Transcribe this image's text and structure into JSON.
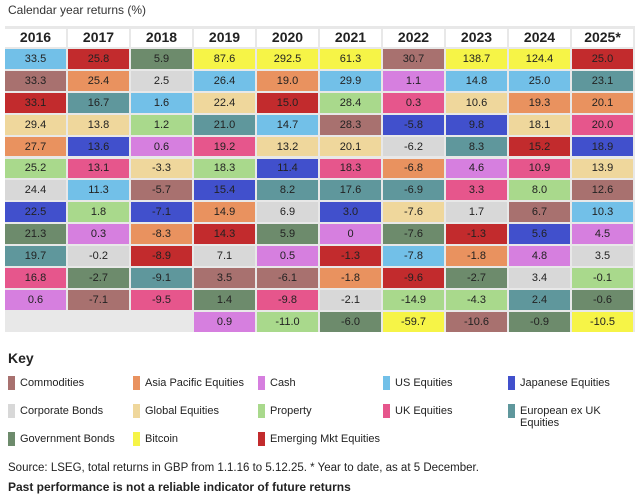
{
  "header": {
    "title": "Calendar year returns (%)"
  },
  "table": {
    "columns": [
      {
        "year": "2016",
        "cells": [
          [
            "33.5",
            "US Equities"
          ],
          [
            "33.3",
            "Commodities"
          ],
          [
            "33.1",
            "Emerging Mkt Equities"
          ],
          [
            "29.4",
            "Global Equities"
          ],
          [
            "27.7",
            "Asia Pacific Equities"
          ],
          [
            "25.2",
            "Property"
          ],
          [
            "24.4",
            "Corporate Bonds"
          ],
          [
            "22.5",
            "Japanese Equities"
          ],
          [
            "21.3",
            "Government Bonds"
          ],
          [
            "19.7",
            "European ex UK Equities"
          ],
          [
            "16.8",
            "UK Equities"
          ],
          [
            "0.6",
            "Cash"
          ]
        ]
      },
      {
        "year": "2017",
        "cells": [
          [
            "25.8",
            "Emerging Mkt Equities"
          ],
          [
            "25.4",
            "Asia Pacific Equities"
          ],
          [
            "16.7",
            "European ex UK Equities"
          ],
          [
            "13.8",
            "Global Equities"
          ],
          [
            "13.6",
            "Japanese Equities"
          ],
          [
            "13.1",
            "UK Equities"
          ],
          [
            "11.3",
            "US Equities"
          ],
          [
            "1.8",
            "Property"
          ],
          [
            "0.3",
            "Cash"
          ],
          [
            "-0.2",
            "Corporate Bonds"
          ],
          [
            "-2.7",
            "Government Bonds"
          ],
          [
            "-7.1",
            "Commodities"
          ]
        ]
      },
      {
        "year": "2018",
        "cells": [
          [
            "5.9",
            "Government Bonds"
          ],
          [
            "2.5",
            "Corporate Bonds"
          ],
          [
            "1.6",
            "US Equities"
          ],
          [
            "1.2",
            "Property"
          ],
          [
            "0.6",
            "Cash"
          ],
          [
            "-3.3",
            "Global Equities"
          ],
          [
            "-5.7",
            "Commodities"
          ],
          [
            "-7.1",
            "Japanese Equities"
          ],
          [
            "-8.3",
            "Asia Pacific Equities"
          ],
          [
            "-8.9",
            "Emerging Mkt Equities"
          ],
          [
            "-9.1",
            "European ex UK Equities"
          ],
          [
            "-9.5",
            "UK Equities"
          ]
        ]
      },
      {
        "year": "2019",
        "cells": [
          [
            "87.6",
            "Bitcoin"
          ],
          [
            "26.4",
            "US Equities"
          ],
          [
            "22.4",
            "Global Equities"
          ],
          [
            "21.0",
            "European ex UK Equities"
          ],
          [
            "19.2",
            "UK Equities"
          ],
          [
            "18.3",
            "Property"
          ],
          [
            "15.4",
            "Japanese Equities"
          ],
          [
            "14.9",
            "Asia Pacific Equities"
          ],
          [
            "14.3",
            "Emerging Mkt Equities"
          ],
          [
            "7.1",
            "Corporate Bonds"
          ],
          [
            "3.5",
            "Commodities"
          ],
          [
            "1.4",
            "Government Bonds"
          ],
          [
            "0.9",
            "Cash"
          ]
        ]
      },
      {
        "year": "2020",
        "cells": [
          [
            "292.5",
            "Bitcoin"
          ],
          [
            "19.0",
            "Asia Pacific Equities"
          ],
          [
            "15.0",
            "Emerging Mkt Equities"
          ],
          [
            "14.7",
            "US Equities"
          ],
          [
            "13.2",
            "Global Equities"
          ],
          [
            "11.4",
            "Japanese Equities"
          ],
          [
            "8.2",
            "European ex UK Equities"
          ],
          [
            "6.9",
            "Corporate Bonds"
          ],
          [
            "5.9",
            "Government Bonds"
          ],
          [
            "0.5",
            "Cash"
          ],
          [
            "-6.1",
            "Commodities"
          ],
          [
            "-9.8",
            "UK Equities"
          ],
          [
            "-11.0",
            "Property"
          ]
        ]
      },
      {
        "year": "2021",
        "cells": [
          [
            "61.3",
            "Bitcoin"
          ],
          [
            "29.9",
            "US Equities"
          ],
          [
            "28.4",
            "Property"
          ],
          [
            "28.3",
            "Commodities"
          ],
          [
            "20.1",
            "Global Equities"
          ],
          [
            "18.3",
            "UK Equities"
          ],
          [
            "17.6",
            "European ex UK Equities"
          ],
          [
            "3.0",
            "Japanese Equities"
          ],
          [
            "0",
            "Cash"
          ],
          [
            "-1.3",
            "Emerging Mkt Equities"
          ],
          [
            "-1.8",
            "Asia Pacific Equities"
          ],
          [
            "-2.1",
            "Corporate Bonds"
          ],
          [
            "-6.0",
            "Government Bonds"
          ]
        ]
      },
      {
        "year": "2022",
        "cells": [
          [
            "30.7",
            "Commodities"
          ],
          [
            "1.1",
            "Cash"
          ],
          [
            "0.3",
            "UK Equities"
          ],
          [
            "-5.8",
            "Japanese Equities"
          ],
          [
            "-6.2",
            "Corporate Bonds"
          ],
          [
            "-6.8",
            "Asia Pacific Equities"
          ],
          [
            "-6.9",
            "European ex UK Equities"
          ],
          [
            "-7.6",
            "Global Equities"
          ],
          [
            "-7.6",
            "Government Bonds"
          ],
          [
            "-7.8",
            "US Equities"
          ],
          [
            "-9.6",
            "Emerging Mkt Equities"
          ],
          [
            "-14.9",
            "Property"
          ],
          [
            "-59.7",
            "Bitcoin"
          ]
        ]
      },
      {
        "year": "2023",
        "cells": [
          [
            "138.7",
            "Bitcoin"
          ],
          [
            "14.8",
            "US Equities"
          ],
          [
            "10.6",
            "Global Equities"
          ],
          [
            "9.8",
            "Japanese Equities"
          ],
          [
            "8.3",
            "European ex UK Equities"
          ],
          [
            "4.6",
            "Cash"
          ],
          [
            "3.3",
            "UK Equities"
          ],
          [
            "1.7",
            "Corporate Bonds"
          ],
          [
            "-1.3",
            "Emerging Mkt Equities"
          ],
          [
            "-1.8",
            "Asia Pacific Equities"
          ],
          [
            "-2.7",
            "Government Bonds"
          ],
          [
            "-4.3",
            "Property"
          ],
          [
            "-10.6",
            "Commodities"
          ]
        ]
      },
      {
        "year": "2024",
        "cells": [
          [
            "124.4",
            "Bitcoin"
          ],
          [
            "25.0",
            "US Equities"
          ],
          [
            "19.3",
            "Asia Pacific Equities"
          ],
          [
            "18.1",
            "Global Equities"
          ],
          [
            "15.2",
            "Emerging Mkt Equities"
          ],
          [
            "10.9",
            "UK Equities"
          ],
          [
            "8.0",
            "Property"
          ],
          [
            "6.7",
            "Commodities"
          ],
          [
            "5.6",
            "Japanese Equities"
          ],
          [
            "4.8",
            "Cash"
          ],
          [
            "3.4",
            "Corporate Bonds"
          ],
          [
            "2.4",
            "European ex UK Equities"
          ],
          [
            "-0.9",
            "Government Bonds"
          ]
        ]
      },
      {
        "year": "2025*",
        "cells": [
          [
            "25.0",
            "Emerging Mkt Equities"
          ],
          [
            "23.1",
            "European ex UK Equities"
          ],
          [
            "20.1",
            "Asia Pacific Equities"
          ],
          [
            "20.0",
            "UK Equities"
          ],
          [
            "18.9",
            "Japanese Equities"
          ],
          [
            "13.9",
            "Global Equities"
          ],
          [
            "12.6",
            "Commodities"
          ],
          [
            "10.3",
            "US Equities"
          ],
          [
            "4.5",
            "Cash"
          ],
          [
            "3.5",
            "Corporate Bonds"
          ],
          [
            "-0.1",
            "Property"
          ],
          [
            "-0.6",
            "Government Bonds"
          ],
          [
            "-10.5",
            "Bitcoin"
          ]
        ]
      }
    ]
  },
  "key": {
    "title": "Key",
    "items": [
      {
        "label": "Commodities",
        "color": "#a8716f"
      },
      {
        "label": "Asia Pacific Equities",
        "color": "#e9925f"
      },
      {
        "label": "Cash",
        "color": "#d67fdf"
      },
      {
        "label": "US Equities",
        "color": "#72c0e8"
      },
      {
        "label": "Japanese Equities",
        "color": "#4150cc"
      },
      {
        "label": "Corporate Bonds",
        "color": "#d8d8d8"
      },
      {
        "label": "Global Equities",
        "color": "#efd79c"
      },
      {
        "label": "Property",
        "color": "#a9d98c"
      },
      {
        "label": "UK Equities",
        "color": "#e6568c"
      },
      {
        "label": "European ex UK Equities",
        "color": "#5f979c"
      },
      {
        "label": "Government Bonds",
        "color": "#6d8b6c"
      },
      {
        "label": "Bitcoin",
        "color": "#f6f447"
      },
      {
        "label": "Emerging Mkt Equities",
        "color": "#c22b2d"
      }
    ]
  },
  "footer": {
    "source": "Source: LSEG, total returns in GBP from 1.1.16 to 5.12.25. * Year to date, as at 5 December.",
    "disclaimer": "Past performance is not a reliable indicator of future returns"
  }
}
